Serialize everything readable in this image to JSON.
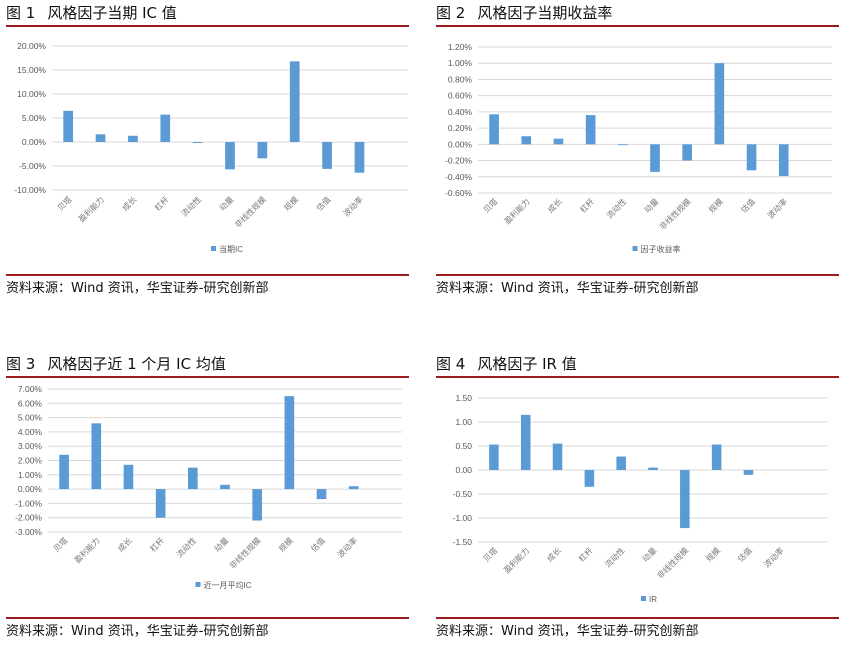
{
  "colors": {
    "bar": "#5b9bd5",
    "grid": "#d9d9d9",
    "rule": "#9b1c1f"
  },
  "source_text": "资料来源：Wind 资讯，华宝证券-研究创新部",
  "panels": [
    {
      "fig_no": "图 1",
      "title": "风格因子当期 IC 值",
      "source": "资料来源：Wind 资讯，华宝证券-研究创新部"
    },
    {
      "fig_no": "图 2",
      "title": "风格因子当期收益率",
      "source": "资料来源：Wind 资讯，华宝证券-研究创新部"
    },
    {
      "fig_no": "图 3",
      "title": "风格因子近 1 个月 IC 均值",
      "source": "资料来源：Wind 资讯，华宝证券-研究创新部"
    },
    {
      "fig_no": "图 4",
      "title": "风格因子 IR 值",
      "source": "资料来源：Wind 资讯，华宝证券-研究创新部"
    }
  ],
  "chart_data": [
    {
      "type": "bar",
      "title": "风格因子当期 IC 值",
      "categories": [
        "贝塔",
        "盈利能力",
        "成长",
        "杠杆",
        "流动性",
        "动量",
        "非线性规模",
        "规模",
        "估值",
        "波动率"
      ],
      "series": [
        {
          "name": "当期IC",
          "values": [
            6.5,
            1.6,
            1.3,
            5.7,
            -0.2,
            -5.7,
            -3.4,
            16.8,
            -5.6,
            -6.4
          ]
        }
      ],
      "unit": "%",
      "yticks": [
        "20.00%",
        "15.00%",
        "10.00%",
        "5.00%",
        "0.00%",
        "-5.00%",
        "-10.00%"
      ],
      "ylim": [
        -10,
        20
      ],
      "ystep": 5,
      "decimals": 2,
      "grid": true,
      "legend_position": "bottom",
      "xlabel": "",
      "ylabel": ""
    },
    {
      "type": "bar",
      "title": "风格因子当期收益率",
      "categories": [
        "贝塔",
        "盈利能力",
        "成长",
        "杠杆",
        "流动性",
        "动量",
        "非线性规模",
        "规模",
        "估值",
        "波动率"
      ],
      "series": [
        {
          "name": "因子收益率",
          "values": [
            0.37,
            0.1,
            0.07,
            0.36,
            -0.01,
            -0.34,
            -0.2,
            1.0,
            -0.32,
            -0.39
          ]
        }
      ],
      "unit": "%",
      "yticks": [
        "1.20%",
        "1.00%",
        "0.80%",
        "0.60%",
        "0.40%",
        "0.20%",
        "0.00%",
        "-0.20%",
        "-0.40%",
        "-0.60%"
      ],
      "ylim": [
        -0.6,
        1.2
      ],
      "ystep": 0.2,
      "decimals": 2,
      "grid": true,
      "legend_position": "bottom",
      "xlabel": "",
      "ylabel": ""
    },
    {
      "type": "bar",
      "title": "风格因子近 1 个月 IC 均值",
      "categories": [
        "贝塔",
        "盈利能力",
        "成长",
        "杠杆",
        "流动性",
        "动量",
        "非线性规模",
        "规模",
        "估值",
        "波动率"
      ],
      "series": [
        {
          "name": "近一月平均IC",
          "values": [
            2.4,
            4.6,
            1.7,
            -2.0,
            1.5,
            0.3,
            -2.2,
            6.5,
            -0.7,
            0.2
          ]
        }
      ],
      "unit": "%",
      "yticks": [
        "7.00%",
        "6.00%",
        "5.00%",
        "4.00%",
        "3.00%",
        "2.00%",
        "1.00%",
        "0.00%",
        "-1.00%",
        "-2.00%",
        "-3.00%"
      ],
      "ylim": [
        -3,
        7
      ],
      "ystep": 1,
      "decimals": 2,
      "grid": true,
      "legend_position": "bottom",
      "xlabel": "",
      "ylabel": ""
    },
    {
      "type": "bar",
      "title": "风格因子 IR 值",
      "categories": [
        "贝塔",
        "盈利能力",
        "成长",
        "杠杆",
        "流动性",
        "动量",
        "非线性规模",
        "规模",
        "估值",
        "波动率"
      ],
      "series": [
        {
          "name": "IR",
          "values": [
            0.53,
            1.15,
            0.55,
            -0.35,
            0.28,
            0.05,
            -1.21,
            0.53,
            -0.1,
            0.0
          ]
        }
      ],
      "unit": "",
      "yticks": [
        "1.50",
        "1.00",
        "0.50",
        "0.00",
        "-0.50",
        "-1.00",
        "-1.50"
      ],
      "ylim": [
        -1.5,
        1.5
      ],
      "ystep": 0.5,
      "decimals": 2,
      "grid": true,
      "legend_position": "bottom",
      "xlabel": "",
      "ylabel": ""
    }
  ]
}
